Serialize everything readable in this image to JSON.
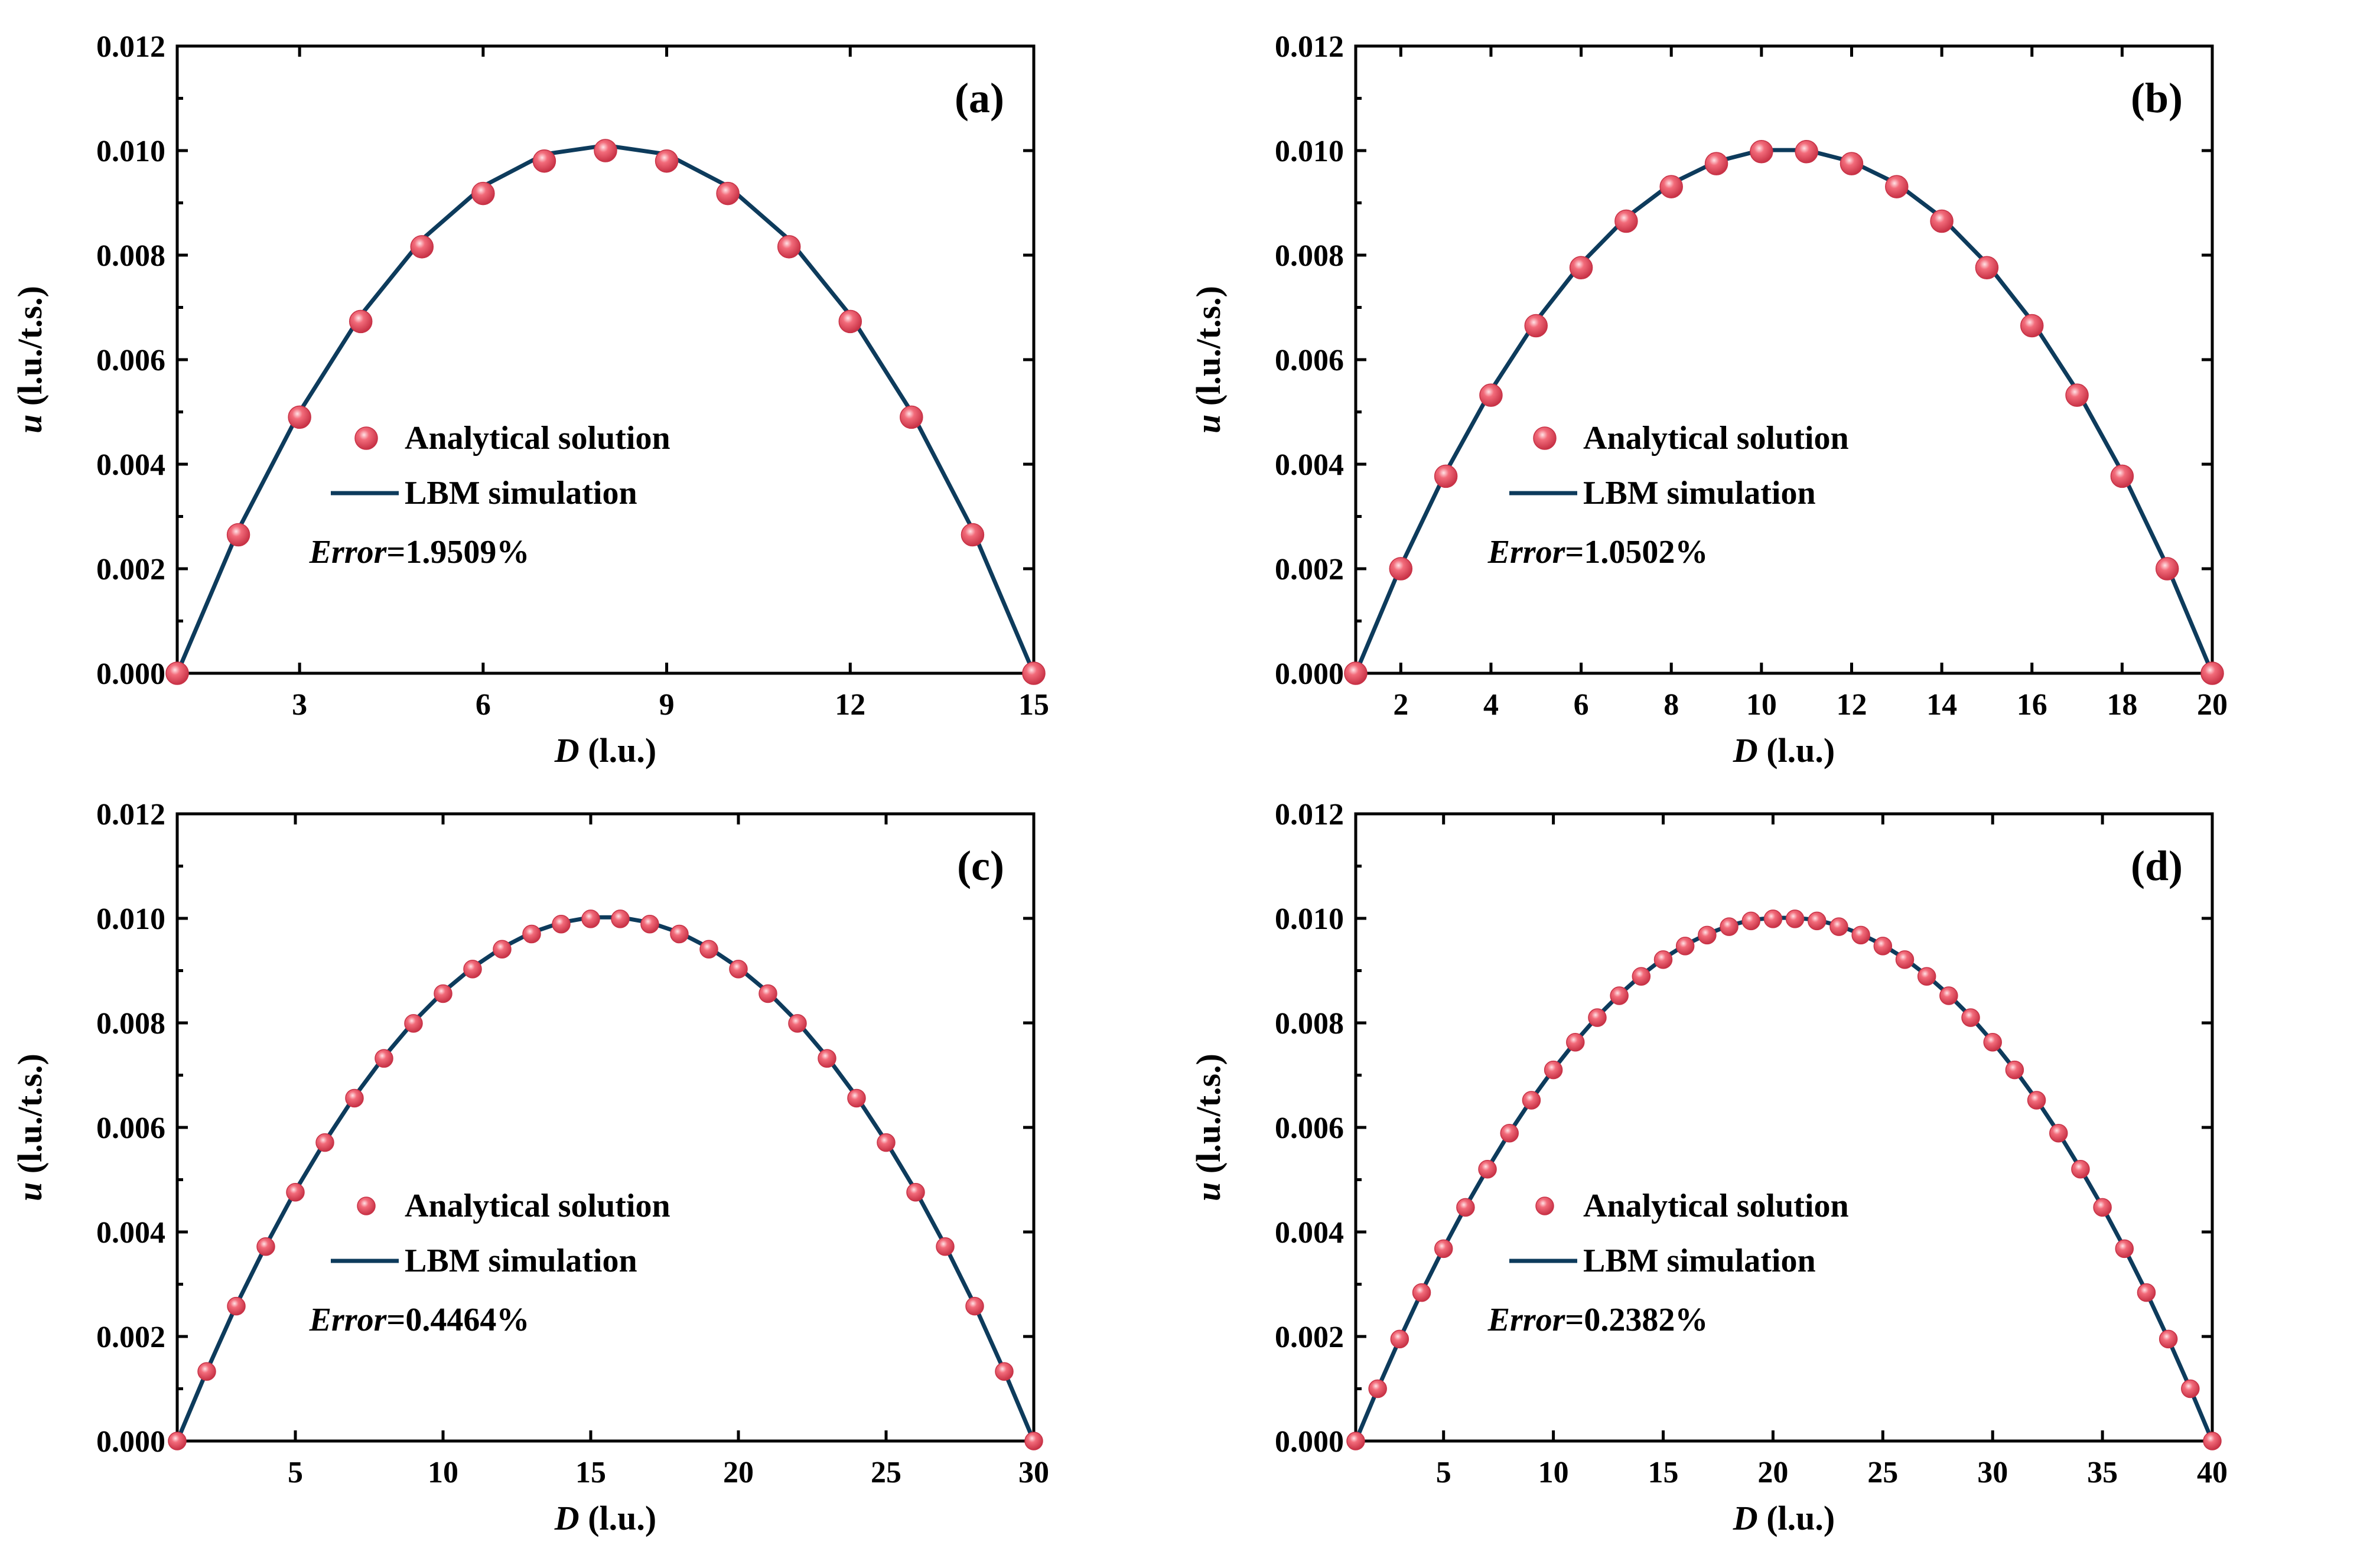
{
  "legend": {
    "analytical": "Analytical solution",
    "lbm": "LBM simulation"
  },
  "colors": {
    "marker_fill": "#f26b7a",
    "marker_dark": "#c83246",
    "line": "#0d3b5c"
  },
  "chart_data": [
    {
      "type": "line",
      "panel": "(a)",
      "error_label": "Error",
      "error_value": "=1.9509%",
      "xlabel_symbol": "D",
      "xlabel_unit": " (l.u.)",
      "ylabel_symbol": "u",
      "ylabel_unit": " (l.u./t.s.)",
      "xlim": [
        1,
        15
      ],
      "ylim": [
        0,
        0.012
      ],
      "xticks": [
        3,
        6,
        9,
        12,
        15
      ],
      "yticks": [
        "0.000",
        "0.002",
        "0.004",
        "0.006",
        "0.008",
        "0.010",
        "0.012"
      ],
      "series": [
        {
          "name": "Analytical solution",
          "kind": "scatter",
          "x": [
            1,
            2,
            3,
            4,
            5,
            6,
            7,
            8,
            9,
            10,
            11,
            12,
            13,
            14,
            15
          ],
          "y": [
            0,
            0.00265,
            0.0049,
            0.00673,
            0.00816,
            0.00918,
            0.0098,
            0.01,
            0.0098,
            0.00918,
            0.00816,
            0.00673,
            0.0049,
            0.00265,
            0
          ]
        },
        {
          "name": "LBM simulation",
          "kind": "line",
          "x": [
            1,
            2,
            3,
            4,
            5,
            6,
            7,
            8,
            9,
            10,
            11,
            12,
            13,
            14,
            15
          ],
          "y": [
            0,
            0.00275,
            0.005,
            0.00685,
            0.0083,
            0.00932,
            0.00993,
            0.0101,
            0.00993,
            0.00932,
            0.0083,
            0.00685,
            0.005,
            0.00275,
            0
          ]
        }
      ]
    },
    {
      "type": "line",
      "panel": "(b)",
      "error_label": "Error",
      "error_value": "=1.0502%",
      "xlabel_symbol": "D",
      "xlabel_unit": " (l.u.)",
      "ylabel_symbol": "u",
      "ylabel_unit": " (l.u./t.s.)",
      "xlim": [
        1,
        20
      ],
      "ylim": [
        0,
        0.012
      ],
      "xticks": [
        2,
        4,
        6,
        8,
        10,
        12,
        14,
        16,
        18,
        20
      ],
      "yticks": [
        "0.000",
        "0.002",
        "0.004",
        "0.006",
        "0.008",
        "0.010",
        "0.012"
      ],
      "series": [
        {
          "name": "Analytical solution",
          "kind": "scatter",
          "x": [
            1,
            2,
            3,
            4,
            5,
            6,
            7,
            8,
            9,
            10,
            11,
            12,
            13,
            14,
            15,
            16,
            17,
            18,
            19,
            20
          ],
          "y": [
            0,
            0.002,
            0.00377,
            0.00532,
            0.00665,
            0.00776,
            0.00865,
            0.00931,
            0.00975,
            0.00998,
            0.00998,
            0.00975,
            0.00931,
            0.00865,
            0.00776,
            0.00665,
            0.00532,
            0.00377,
            0.002,
            0
          ]
        },
        {
          "name": "LBM simulation",
          "kind": "line",
          "x": [
            1,
            2,
            3,
            4,
            5,
            6,
            7,
            8,
            9,
            10,
            11,
            12,
            13,
            14,
            15,
            16,
            17,
            18,
            19,
            20
          ],
          "y": [
            0,
            0.00205,
            0.00385,
            0.00541,
            0.00674,
            0.00784,
            0.00872,
            0.00937,
            0.00979,
            0.01001,
            0.01001,
            0.00979,
            0.00937,
            0.00872,
            0.00784,
            0.00674,
            0.00541,
            0.00385,
            0.00205,
            0
          ]
        }
      ]
    },
    {
      "type": "line",
      "panel": "(c)",
      "error_label": "Error",
      "error_value": "=0.4464%",
      "xlabel_symbol": "D",
      "xlabel_unit": " (l.u.)",
      "ylabel_symbol": "u",
      "ylabel_unit": " (l.u./t.s.)",
      "xlim": [
        1,
        30
      ],
      "ylim": [
        0,
        0.012
      ],
      "xticks": [
        5,
        10,
        15,
        20,
        25,
        30
      ],
      "yticks": [
        "0.000",
        "0.002",
        "0.004",
        "0.006",
        "0.008",
        "0.010",
        "0.012"
      ],
      "series": [
        {
          "name": "Analytical solution",
          "kind": "scatter",
          "x": [
            1,
            2,
            3,
            4,
            5,
            6,
            7,
            8,
            9,
            10,
            11,
            12,
            13,
            14,
            15,
            16,
            17,
            18,
            19,
            20,
            21,
            22,
            23,
            24,
            25,
            26,
            27,
            28,
            29,
            30
          ],
          "y": [
            0,
            0.00133,
            0.00258,
            0.00372,
            0.00476,
            0.00571,
            0.00656,
            0.00732,
            0.00799,
            0.00856,
            0.00903,
            0.00941,
            0.0097,
            0.00989,
            0.00999,
            0.00999,
            0.00989,
            0.0097,
            0.00941,
            0.00903,
            0.00856,
            0.00799,
            0.00732,
            0.00656,
            0.00571,
            0.00476,
            0.00372,
            0.00258,
            0.00133,
            0
          ]
        },
        {
          "name": "LBM simulation",
          "kind": "line",
          "x": [
            1,
            2,
            3,
            4,
            5,
            6,
            7,
            8,
            9,
            10,
            11,
            12,
            13,
            14,
            15,
            16,
            17,
            18,
            19,
            20,
            21,
            22,
            23,
            24,
            25,
            26,
            27,
            28,
            29,
            30
          ],
          "y": [
            0,
            0.00134,
            0.0026,
            0.00374,
            0.00479,
            0.00573,
            0.00659,
            0.00735,
            0.00802,
            0.00859,
            0.00906,
            0.00944,
            0.00973,
            0.00992,
            0.01002,
            0.01002,
            0.00992,
            0.00973,
            0.00944,
            0.00906,
            0.00859,
            0.00802,
            0.00735,
            0.00659,
            0.00573,
            0.00479,
            0.00374,
            0.0026,
            0.00134,
            0
          ]
        }
      ]
    },
    {
      "type": "line",
      "panel": "(d)",
      "error_label": "Error",
      "error_value": "=0.2382%",
      "xlabel_symbol": "D",
      "xlabel_unit": " (l.u.)",
      "ylabel_symbol": "u",
      "ylabel_unit": " (l.u./t.s.)",
      "xlim": [
        1,
        40
      ],
      "ylim": [
        0,
        0.012
      ],
      "xticks": [
        5,
        10,
        15,
        20,
        25,
        30,
        35,
        40
      ],
      "yticks": [
        "0.000",
        "0.002",
        "0.004",
        "0.006",
        "0.008",
        "0.010",
        "0.012"
      ],
      "series": [
        {
          "name": "Analytical solution",
          "kind": "scatter",
          "x": [
            1,
            2,
            3,
            4,
            5,
            6,
            7,
            8,
            9,
            10,
            11,
            12,
            13,
            14,
            15,
            16,
            17,
            18,
            19,
            20,
            21,
            22,
            23,
            24,
            25,
            26,
            27,
            28,
            29,
            30,
            31,
            32,
            33,
            34,
            35,
            36,
            37,
            38,
            39,
            40
          ],
          "y": [
            0,
            0.001,
            0.00195,
            0.00284,
            0.00368,
            0.00447,
            0.0052,
            0.00589,
            0.00652,
            0.0071,
            0.00763,
            0.0081,
            0.00852,
            0.00889,
            0.00921,
            0.00947,
            0.00968,
            0.00984,
            0.00995,
            0.00999,
            0.00999,
            0.00995,
            0.00984,
            0.00968,
            0.00947,
            0.00921,
            0.00889,
            0.00852,
            0.0081,
            0.00763,
            0.0071,
            0.00652,
            0.00589,
            0.0052,
            0.00447,
            0.00368,
            0.00284,
            0.00195,
            0.001,
            0
          ]
        },
        {
          "name": "LBM simulation",
          "kind": "line",
          "x": [
            1,
            2,
            3,
            4,
            5,
            6,
            7,
            8,
            9,
            10,
            11,
            12,
            13,
            14,
            15,
            16,
            17,
            18,
            19,
            20,
            21,
            22,
            23,
            24,
            25,
            26,
            27,
            28,
            29,
            30,
            31,
            32,
            33,
            34,
            35,
            36,
            37,
            38,
            39,
            40
          ],
          "y": [
            0,
            0.001,
            0.00195,
            0.00285,
            0.00369,
            0.00448,
            0.00521,
            0.0059,
            0.00653,
            0.00711,
            0.00764,
            0.00812,
            0.00854,
            0.00891,
            0.00923,
            0.00949,
            0.0097,
            0.00986,
            0.00997,
            0.01001,
            0.01001,
            0.00997,
            0.00986,
            0.0097,
            0.00949,
            0.00923,
            0.00891,
            0.00854,
            0.00812,
            0.00764,
            0.00711,
            0.00653,
            0.0059,
            0.00521,
            0.00448,
            0.00369,
            0.00285,
            0.00195,
            0.001,
            0
          ]
        }
      ]
    }
  ]
}
